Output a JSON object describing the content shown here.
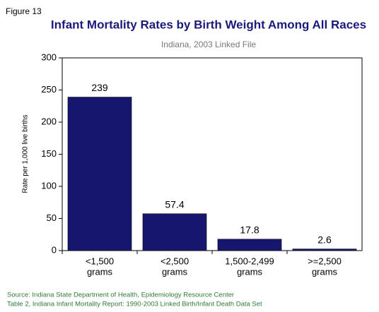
{
  "chart_data": {
    "type": "bar",
    "figure_label": "Figure 13",
    "title": "Infant Mortality Rates by Birth Weight Among All Races",
    "subtitle": "Indiana, 2003 Linked File",
    "y_label": "Rate per 1,000 live births",
    "categories": [
      [
        "<1,500",
        "grams"
      ],
      [
        "<2,500",
        "grams"
      ],
      [
        "1,500-2,499",
        "grams"
      ],
      [
        ">=2,500",
        "grams"
      ]
    ],
    "values": [
      239,
      57.4,
      17.8,
      2.6
    ],
    "color": "#16166e",
    "ylim": [
      0,
      300
    ],
    "yticks": [
      0,
      50,
      100,
      150,
      200,
      250,
      300
    ],
    "grid": false,
    "notes": [
      "Source: Indiana State Department of Health, Epidemiology Resource Center",
      "Table 2, Indiana Infant Mortality Report: 1990-2003 Linked Birth/Infant Death Data Set"
    ]
  }
}
